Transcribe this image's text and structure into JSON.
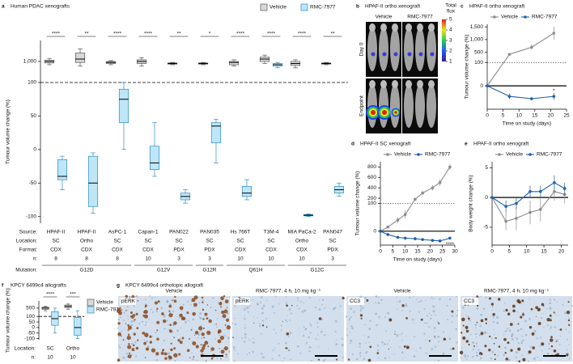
{
  "chart_data": [
    {
      "type": "box",
      "letter": "a",
      "title": "Human PDAC xenografts",
      "ylabel": "Tumour volume change (%)",
      "ylim": [
        -110,
        10000
      ],
      "ybreak": 100,
      "upper_scale": "log",
      "yticks": [
        {
          "value": 1000,
          "label": "1,000"
        },
        100,
        50,
        0,
        -50,
        -100
      ],
      "category_label": "Source:",
      "categories": [
        "HPAF-II",
        "HPAF-II",
        "AsPC-1",
        "Capan-1",
        "PAN022",
        "PAN035",
        "Hs 766T",
        "T3M-4",
        "MIA PaCa-2",
        "PAN047"
      ],
      "significance": [
        "****",
        "**",
        "****",
        "****",
        "**",
        "*",
        "****",
        "****",
        "****",
        "**"
      ],
      "series": [
        {
          "name": "Vehicle",
          "color": "#d9d9d9",
          "edge": "#555555",
          "boxes": [
            [
              700,
              850,
              1000,
              1150,
              1400
            ],
            [
              600,
              900,
              1300,
              2500,
              4000
            ],
            [
              700,
              800,
              900,
              1000,
              1100
            ],
            [
              600,
              800,
              1000,
              1200,
              1500
            ],
            [
              700,
              750,
              800,
              850,
              900
            ],
            [
              700,
              750,
              800,
              850,
              900
            ],
            [
              600,
              700,
              900,
              1000,
              1200
            ],
            [
              800,
              1000,
              1300,
              1600,
              2000
            ],
            [
              500,
              650,
              800,
              1000,
              1200
            ],
            [
              700,
              750,
              800,
              850,
              900
            ]
          ]
        },
        {
          "name": "RMC-7977",
          "color": "#bfe6f7",
          "edge": "#2b8cc4",
          "boxes": [
            [
              -60,
              -45,
              -40,
              -15,
              -10
            ],
            [
              -95,
              -85,
              -50,
              -10,
              -5
            ],
            [
              0,
              40,
              75,
              90,
              100
            ],
            [
              -40,
              -30,
              -20,
              5,
              40
            ],
            [
              -80,
              -75,
              -70,
              -65,
              -60
            ],
            [
              -20,
              10,
              35,
              40,
              45
            ],
            [
              -75,
              -70,
              -65,
              -55,
              -45
            ],
            [
              500,
              600,
              700,
              800,
              900
            ],
            [
              -100,
              -99,
              -98,
              -97,
              -96
            ],
            [
              -70,
              -65,
              -60,
              -55,
              -50
            ]
          ]
        }
      ],
      "table": [
        {
          "label": "Location:",
          "values": [
            "SC",
            "Ortho",
            "SC",
            "SC",
            "SC",
            "SC",
            "SC",
            "SC",
            "Ortho",
            "SC"
          ]
        },
        {
          "label": "Format:",
          "values": [
            "CDX",
            "CDX",
            "CDX",
            "CDX",
            "PDX",
            "PDX",
            "CDX",
            "CDX",
            "CDX",
            "PDX"
          ]
        },
        {
          "label": "n:",
          "values": [
            8,
            8,
            8,
            10,
            3,
            3,
            10,
            10,
            10,
            3
          ]
        },
        {
          "label": "Mutation:",
          "values": [
            "G12D",
            "G12D",
            "G12D",
            "G12V",
            "G12V",
            "G12R",
            "Q61H",
            "Q61H",
            "G12C",
            "G12C"
          ],
          "merge": true
        }
      ]
    },
    {
      "type": "image",
      "letter": "b",
      "title": "HPAF-II ortho xenograft",
      "columns": [
        "Vehicle",
        "RMC-7977"
      ],
      "rows": [
        "Day 0",
        "Endpoint"
      ],
      "colorbar_label": [
        "Total",
        "flux"
      ],
      "colorbar_ticks": [
        5,
        4,
        3,
        2,
        1
      ]
    },
    {
      "type": "line",
      "letter": "c",
      "title": "HPAF-II ortho xenograft",
      "xlabel": "Time on study (days)",
      "ylabel": "Tumour volume change (%)",
      "xlim": [
        0,
        25
      ],
      "xticks": [
        0,
        5,
        10,
        15,
        20,
        25
      ],
      "ylim": [
        -100,
        1600
      ],
      "ybreak": 100,
      "yticks": [
        {
          "value": 1500,
          "label": "1,500"
        },
        {
          "value": 1000,
          "label": "1,000"
        },
        500,
        100,
        0
      ],
      "zero_line": true,
      "x": [
        0,
        7,
        14,
        21
      ],
      "series": [
        {
          "name": "Vehicle",
          "color": "#8c8c8c",
          "values": [
            0,
            420,
            700,
            1250
          ],
          "errors": [
            0,
            40,
            90,
            250
          ]
        },
        {
          "name": "RMC-7977",
          "color": "#1f5fa8",
          "values": [
            0,
            -45,
            -55,
            -45
          ],
          "errors": [
            0,
            12,
            8,
            15
          ]
        }
      ],
      "annotation": "*"
    },
    {
      "type": "line",
      "letter": "d",
      "title": "HPAF-II SC xenograft",
      "xlabel": "Time on study (days)",
      "ylabel": "Tumour volume change (%)",
      "xlim": [
        0,
        30
      ],
      "xticks": [
        0,
        5,
        10,
        15,
        20,
        25,
        30
      ],
      "ylim": [
        -50,
        900
      ],
      "ybreak": 100,
      "yticks": [
        800,
        600,
        400,
        200,
        100,
        0
      ],
      "zero_line": true,
      "x": [
        0,
        3,
        7,
        10,
        14,
        17,
        21,
        24,
        28
      ],
      "series": [
        {
          "name": "Vehicle",
          "color": "#8c8c8c",
          "values": [
            0,
            15,
            40,
            60,
            180,
            300,
            400,
            500,
            800
          ],
          "errors": [
            0,
            5,
            10,
            15,
            30,
            40,
            50,
            60,
            60
          ]
        },
        {
          "name": "RMC-7977",
          "color": "#1f5fa8",
          "values": [
            0,
            -12,
            -22,
            -25,
            -27,
            -30,
            -33,
            -35,
            -25
          ],
          "errors": [
            0,
            3,
            4,
            4,
            5,
            5,
            5,
            5,
            5
          ]
        }
      ],
      "annotation": "****"
    },
    {
      "type": "line",
      "letter": "e",
      "title": "HPAF-II ortho xenograft",
      "ylabel": "Body weight change (%)",
      "xlim": [
        0,
        22
      ],
      "xticks": [
        0,
        5,
        10,
        15,
        20
      ],
      "ylim": [
        -8,
        6
      ],
      "yticks": [
        5,
        0,
        -5
      ],
      "zero_line": true,
      "x": [
        0,
        4,
        7,
        11,
        14,
        18,
        21
      ],
      "series": [
        {
          "name": "Vehicle",
          "color": "#8c8c8c",
          "values": [
            0,
            -4,
            -3.5,
            -2.5,
            -2,
            1,
            0.5
          ],
          "errors": [
            0,
            1.5,
            2,
            2,
            2,
            1.5,
            1.5
          ]
        },
        {
          "name": "RMC-7977",
          "color": "#1f5fa8",
          "values": [
            0,
            -1.5,
            -1,
            1,
            1,
            2.5,
            1.5
          ],
          "errors": [
            0,
            1,
            1,
            1,
            1,
            1.2,
            1
          ]
        }
      ]
    },
    {
      "type": "box",
      "letter": "f",
      "title": "KPCY 6499c4 allografts",
      "ylabel": "Tumour volume change (%)",
      "ylim": [
        -110,
        2000
      ],
      "ybreak": 100,
      "upper_scale": "log",
      "yticks": [
        500,
        100,
        50,
        0,
        -50,
        -100
      ],
      "category_label": "Location:",
      "categories": [
        "SC",
        "Ortho"
      ],
      "significance": [
        "****",
        "***"
      ],
      "series": [
        {
          "name": "Vehicle",
          "color": "#d9d9d9",
          "edge": "#555555",
          "boxes": [
            [
              300,
              400,
              500,
              600,
              700
            ],
            [
              400,
              550,
              700,
              900,
              1100
            ]
          ]
        },
        {
          "name": "RMC-7977",
          "color": "#bfe6f7",
          "edge": "#2b8cc4",
          "boxes": [
            [
              -50,
              20,
              80,
              250,
              500
            ],
            [
              -100,
              -70,
              0,
              90,
              300
            ]
          ]
        }
      ],
      "table": [
        {
          "label": "n:",
          "values": [
            10,
            10
          ]
        }
      ]
    },
    {
      "type": "histology",
      "letter": "g",
      "title": "KPCY 6499c4 orthotopic allograft",
      "panels": [
        {
          "caption": "Vehicle",
          "stain": "pERK"
        },
        {
          "caption": "RMC-7977, 4 h, 10 mg kg⁻¹",
          "stain": "pERK"
        },
        {
          "caption": "Vehicle",
          "stain": "CC3"
        },
        {
          "caption": "RMC-7977, 4 h, 10 mg kg⁻¹",
          "stain": "CC3"
        }
      ]
    }
  ]
}
